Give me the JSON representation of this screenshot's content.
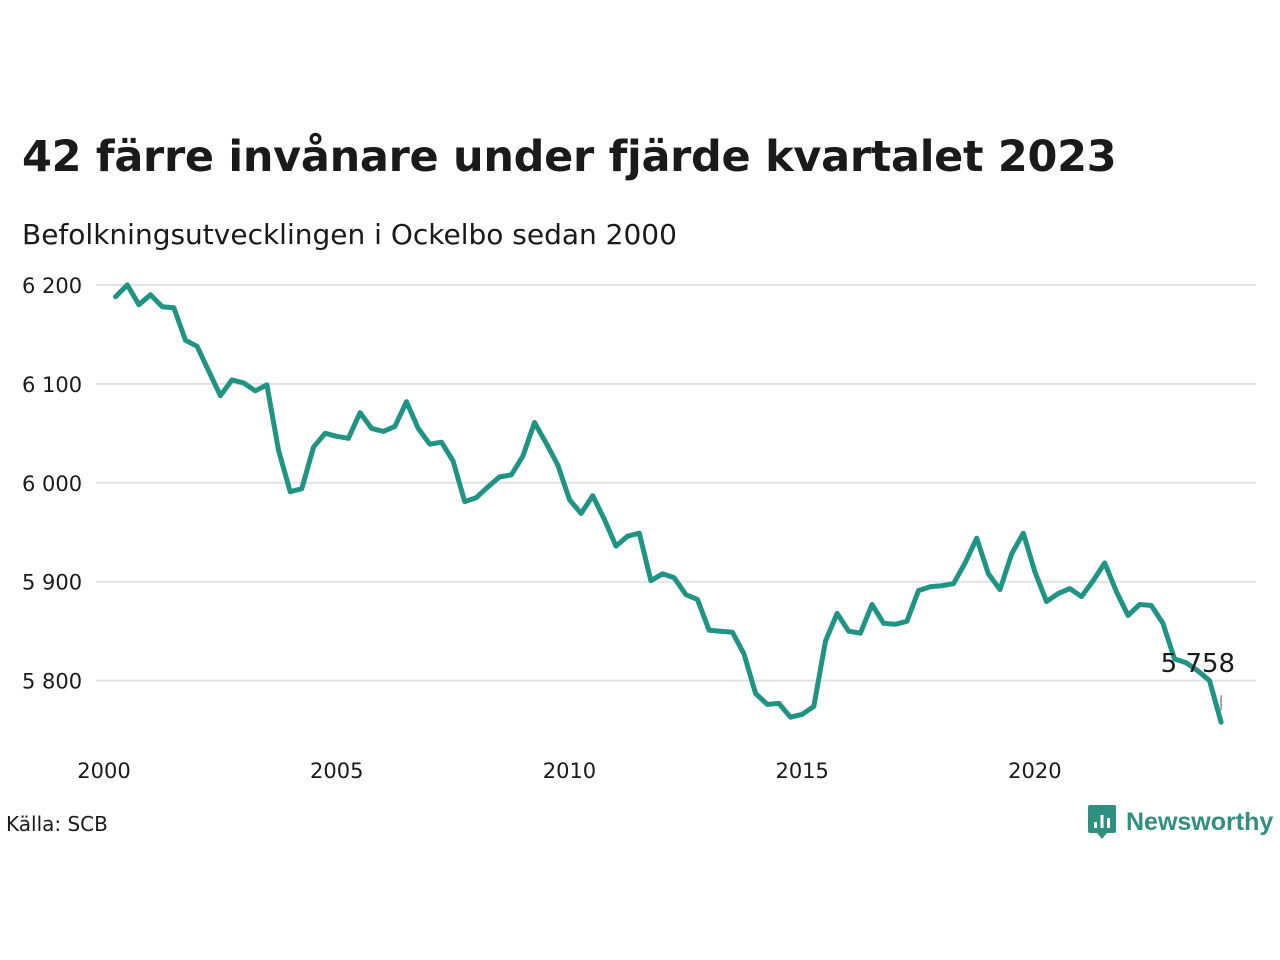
{
  "title": "42 färre invånare under fjärde kvartalet 2023",
  "subtitle": "Befolkningsutvecklingen i Ockelbo sedan 2000",
  "source": "Källa: SCB",
  "brand": {
    "name": "Newsworthy",
    "icon": "newsworthy-chart-bubble-icon",
    "color": "#2f8f80"
  },
  "colors": {
    "line": "#1f9384",
    "grid": "#e2e2e2"
  },
  "chart_data": {
    "type": "line",
    "title": "42 färre invånare under fjärde kvartalet 2023",
    "subtitle": "Befolkningsutvecklingen i Ockelbo sedan 2000",
    "xlabel": "",
    "ylabel": "",
    "xlim": [
      2000,
      2024.75
    ],
    "ylim": [
      5740,
      6205
    ],
    "grid": true,
    "x_ticks": [
      2000,
      2005,
      2010,
      2015,
      2020
    ],
    "x_tick_labels": [
      "2000",
      "2005",
      "2010",
      "2015",
      "2020"
    ],
    "y_ticks": [
      5800,
      5900,
      6000,
      6100,
      6200
    ],
    "y_tick_labels": [
      "5 800",
      "5 900",
      "6 000",
      "6 100",
      "6 200"
    ],
    "end_label": "5 758",
    "series": [
      {
        "x": [
          2000.25,
          2000.5,
          2000.75,
          2001.0,
          2001.25,
          2001.5,
          2001.75,
          2002.0,
          2002.25,
          2002.5,
          2002.75,
          2003.0,
          2003.25,
          2003.5,
          2003.75,
          2004.0,
          2004.25,
          2004.5,
          2004.75,
          2005.0,
          2005.25,
          2005.5,
          2005.75,
          2006.0,
          2006.25,
          2006.5,
          2006.75,
          2007.0,
          2007.25,
          2007.5,
          2007.75,
          2008.0,
          2008.25,
          2008.5,
          2008.75,
          2009.0,
          2009.25,
          2009.5,
          2009.75,
          2010.0,
          2010.25,
          2010.5,
          2010.75,
          2011.0,
          2011.25,
          2011.5,
          2011.75,
          2012.0,
          2012.25,
          2012.5,
          2012.75,
          2013.0,
          2013.25,
          2013.5,
          2013.75,
          2014.0,
          2014.25,
          2014.5,
          2014.75,
          2015.0,
          2015.25,
          2015.5,
          2015.75,
          2016.0,
          2016.25,
          2016.5,
          2016.75,
          2017.0,
          2017.25,
          2017.5,
          2017.75,
          2018.0,
          2018.25,
          2018.5,
          2018.75,
          2019.0,
          2019.25,
          2019.5,
          2019.75,
          2020.0,
          2020.25,
          2020.5,
          2020.75,
          2021.0,
          2021.25,
          2021.5,
          2021.75,
          2022.0,
          2022.25,
          2022.5,
          2022.75,
          2023.0,
          2023.25,
          2023.5,
          2023.75,
          2024.0
        ],
        "y": [
          6188,
          6200,
          6180,
          6190,
          6178,
          6177,
          6144,
          6138,
          6113,
          6088,
          6104,
          6101,
          6093,
          6099,
          6033,
          5991,
          5994,
          6036,
          6050,
          6047,
          6045,
          6071,
          6055,
          6052,
          6057,
          6082,
          6055,
          6039,
          6041,
          6022,
          5981,
          5985,
          5996,
          6006,
          6008,
          6027,
          6061,
          6040,
          6018,
          5983,
          5969,
          5987,
          5963,
          5936,
          5946,
          5949,
          5901,
          5908,
          5904,
          5887,
          5882,
          5851,
          5850,
          5849,
          5827,
          5787,
          5776,
          5777,
          5763,
          5766,
          5774,
          5840,
          5868,
          5850,
          5848,
          5877,
          5858,
          5857,
          5860,
          5891,
          5895,
          5896,
          5898,
          5919,
          5944,
          5908,
          5892,
          5928,
          5949,
          5910,
          5880,
          5888,
          5893,
          5885,
          5901,
          5919,
          5890,
          5866,
          5877,
          5876,
          5858,
          5822,
          5818,
          5810,
          5800,
          5758
        ]
      }
    ]
  }
}
